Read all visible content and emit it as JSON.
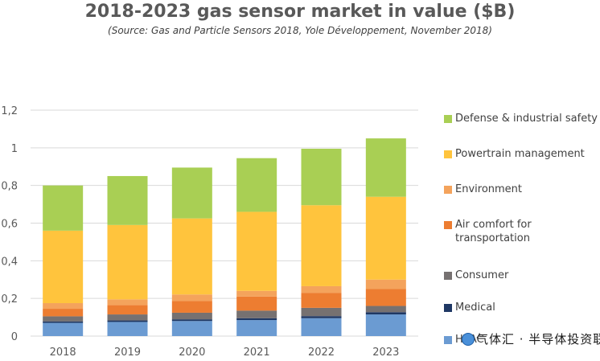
{
  "chart_data": {
    "type": "bar",
    "stacked": true,
    "title": "2018-2023 gas sensor market in value ($B)",
    "subtitle": "(Source: Gas and Particle Sensors 2018, Yole Développement, November 2018)",
    "categories": [
      "2018",
      "2019",
      "2020",
      "2021",
      "2022",
      "2023"
    ],
    "ylim": [
      0,
      1.2
    ],
    "yticks": [
      "0",
      "0,2",
      "0,4",
      "0,6",
      "0,8",
      "1",
      "1,2"
    ],
    "yticks_values": [
      0,
      0.2,
      0.4,
      0.6,
      0.8,
      1.0,
      1.2
    ],
    "grid": true,
    "legend_position": "right",
    "series": [
      {
        "name": "HVAC",
        "color": "#6b9bd2",
        "values": [
          0.07,
          0.075,
          0.08,
          0.085,
          0.095,
          0.115
        ]
      },
      {
        "name": "Medical",
        "color": "#1f3864",
        "values": [
          0.008,
          0.008,
          0.009,
          0.01,
          0.011,
          0.012
        ]
      },
      {
        "name": "Consumer",
        "color": "#767171",
        "values": [
          0.027,
          0.032,
          0.035,
          0.04,
          0.044,
          0.033
        ]
      },
      {
        "name": "Air comfort for\ntransportation",
        "color": "#ed7d31",
        "values": [
          0.04,
          0.05,
          0.062,
          0.075,
          0.08,
          0.09
        ]
      },
      {
        "name": "Environment",
        "color": "#f4a35c",
        "values": [
          0.03,
          0.03,
          0.035,
          0.03,
          0.035,
          0.05
        ]
      },
      {
        "name": "Powertrain management",
        "color": "#ffc43d",
        "values": [
          0.385,
          0.395,
          0.404,
          0.42,
          0.43,
          0.44
        ]
      },
      {
        "name": "Defense & industrial safety",
        "color": "#a9cf54",
        "values": [
          0.24,
          0.26,
          0.27,
          0.285,
          0.3,
          0.31
        ]
      }
    ]
  },
  "watermark": {
    "text": "气体汇 · 半导体投资联盟"
  }
}
